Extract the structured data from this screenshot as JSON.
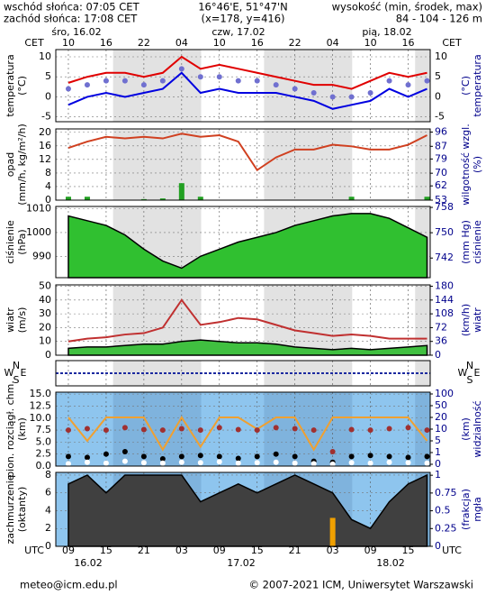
{
  "header": {
    "sunrise": "wschód słońca: 07:05 CET",
    "sunset": "zachód słońca: 17:08 CET",
    "coords": "16°46'E, 51°47'N",
    "grid_point": "(x=178, y=416)",
    "height_title": "wysokość (min, środek, max)",
    "height_values": "84 - 104 - 126 m"
  },
  "footer": {
    "email": "meteo@icm.edu.pl",
    "copyright": "© 2007-2021 ICM, Uniwersytet Warszawski"
  },
  "time": {
    "x": [
      9,
      12,
      15,
      18,
      21,
      24,
      27,
      30,
      33,
      36,
      39,
      42,
      45,
      48,
      51,
      54,
      57,
      60,
      63,
      66
    ],
    "xlim": [
      7,
      66.5
    ],
    "top_zone": "CET",
    "bottom_zone": "UTC",
    "cet_ticks": [
      {
        "value": 9,
        "label": "10"
      },
      {
        "value": 15,
        "label": "16"
      },
      {
        "value": 21,
        "label": "22"
      },
      {
        "value": 27,
        "label": "04"
      },
      {
        "value": 33,
        "label": "10"
      },
      {
        "value": 39,
        "label": "16"
      },
      {
        "value": 45,
        "label": "22"
      },
      {
        "value": 51,
        "label": "04"
      },
      {
        "value": 57,
        "label": "10"
      },
      {
        "value": 63,
        "label": "16"
      }
    ],
    "xticks": [
      {
        "value": 9,
        "label": "09"
      },
      {
        "value": 15,
        "label": "15"
      },
      {
        "value": 21,
        "label": "21"
      },
      {
        "value": 27,
        "label": "03"
      },
      {
        "value": 33,
        "label": "09"
      },
      {
        "value": 39,
        "label": "15"
      },
      {
        "value": 45,
        "label": "21"
      },
      {
        "value": 51,
        "label": "03"
      },
      {
        "value": 57,
        "label": "09"
      },
      {
        "value": 63,
        "label": "15"
      }
    ],
    "dates_top": [
      "śro, 16.02",
      "czw, 17.02",
      "pią, 18.02"
    ],
    "dates_bottom": [
      "16.02",
      "17.02",
      "18.02"
    ]
  },
  "chart_data": [
    {
      "type": "line",
      "ylabel": [
        "temperatura",
        "(°C)"
      ],
      "y2label": [
        "(°C)",
        "temperatura"
      ],
      "ylim": [
        -6.2,
        11.8
      ],
      "yticks": [
        -5,
        0,
        5,
        10
      ],
      "mirror": true,
      "series": [
        {
          "kind": "line",
          "color": "#e00000",
          "values": [
            3.5,
            5,
            6,
            6,
            5,
            6,
            10,
            7,
            8,
            7,
            6,
            5,
            4,
            3,
            3,
            2,
            4,
            6,
            5,
            6
          ]
        },
        {
          "kind": "dots",
          "color": "#7070d0",
          "values": [
            2,
            3,
            4,
            4,
            3,
            4,
            7,
            5,
            5,
            4,
            4,
            3,
            2,
            1,
            0,
            0,
            1,
            4,
            3,
            4
          ]
        },
        {
          "kind": "line",
          "color": "#0000e0",
          "values": [
            -2,
            0,
            1,
            0,
            1,
            2,
            6,
            1,
            2,
            1,
            1,
            1,
            0,
            -1,
            -3,
            -2,
            -1,
            2,
            0,
            2
          ]
        }
      ]
    },
    {
      "type": "line",
      "ylabel": [
        "opad",
        "(mm/h, kg/m²/h)"
      ],
      "y2label": [
        "wilgotność wzgl.",
        "(%)"
      ],
      "ylim": [
        0,
        21
      ],
      "yticks": [
        0,
        4,
        8,
        12,
        16,
        20
      ],
      "y2lim": [
        53,
        98
      ],
      "y2ticks": [
        53,
        62,
        70,
        79,
        87,
        96
      ],
      "series": [
        {
          "kind": "bars",
          "color": "#22a022",
          "values": [
            1,
            1,
            0,
            0,
            0.3,
            0.5,
            5,
            1,
            0,
            0,
            0,
            0,
            0,
            0,
            0,
            1,
            0,
            0,
            0,
            1
          ]
        },
        {
          "kind": "line",
          "color": "#d04020",
          "axis": "y2",
          "values": [
            86,
            90,
            93,
            92,
            93,
            92,
            95,
            93,
            94,
            90,
            72,
            80,
            85,
            85,
            88,
            87,
            85,
            85,
            88,
            94
          ]
        }
      ]
    },
    {
      "type": "line",
      "ylabel": [
        "ciśnienie",
        "(hPa)"
      ],
      "y2label": [
        "(mm Hg)",
        "ciśnienie"
      ],
      "ylim": [
        981,
        1011
      ],
      "yticks": [
        990,
        1000,
        1010
      ],
      "y2lim": [
        735.8,
        758.3
      ],
      "y2ticks": [
        742,
        750,
        758
      ],
      "series": [
        {
          "kind": "area",
          "color": "#30c030",
          "values": [
            1007,
            1005,
            1003,
            999,
            993,
            988,
            985,
            990,
            993,
            996,
            998,
            1000,
            1003,
            1005,
            1007,
            1008,
            1008,
            1006,
            1002,
            998
          ]
        }
      ]
    },
    {
      "type": "line",
      "ylabel": [
        "wiatr",
        "(m/s)"
      ],
      "y2label": [
        "(km/h)",
        "wiatr"
      ],
      "ylim": [
        0,
        51
      ],
      "yticks": [
        0,
        10,
        20,
        30,
        40,
        50
      ],
      "y2lim": [
        0,
        183.6
      ],
      "y2ticks": [
        0,
        36,
        72,
        108,
        144,
        180
      ],
      "series": [
        {
          "kind": "area",
          "color": "#40c040",
          "values": [
            5,
            6,
            6,
            7,
            8,
            8,
            10,
            11,
            10,
            9,
            9,
            8,
            6,
            5,
            4,
            5,
            4,
            5,
            6,
            7
          ]
        },
        {
          "kind": "line",
          "color": "#c03030",
          "values": [
            10,
            12,
            13,
            15,
            16,
            20,
            40,
            22,
            24,
            27,
            26,
            22,
            18,
            16,
            14,
            15,
            14,
            12,
            12,
            12
          ]
        }
      ]
    },
    {
      "type": "direction",
      "compass": [
        "N",
        "W",
        "E",
        "S"
      ]
    },
    {
      "type": "line",
      "ylabel": [
        "pion. rozciągł. chm.",
        "(km)"
      ],
      "y2label": [
        "(km)",
        "widzialność"
      ],
      "ylim": [
        0,
        15.4
      ],
      "yticks": [
        {
          "value": 0,
          "label": "0.0"
        },
        {
          "value": 2.5,
          "label": "2.5"
        },
        {
          "value": 5,
          "label": "5.0"
        },
        {
          "value": 7.5,
          "label": "7.5"
        },
        {
          "value": 10,
          "label": "10.0"
        },
        {
          "value": 12.5,
          "label": "12.5"
        },
        {
          "value": 15,
          "label": "15.0"
        }
      ],
      "y2scale": "ticks",
      "y2ticks": [
        0,
        1,
        5,
        10,
        20,
        50,
        100
      ],
      "series": [
        {
          "kind": "line",
          "color": "#f0a030",
          "axis": "y2",
          "values": [
            20,
            5,
            20,
            20,
            20,
            2,
            20,
            3,
            20,
            20,
            10,
            20,
            20,
            2,
            20,
            20,
            20,
            20,
            20,
            5
          ]
        },
        {
          "kind": "dots",
          "color": "#a03030",
          "values": [
            7.5,
            7.8,
            7.5,
            8,
            7.6,
            7.5,
            7.8,
            7.5,
            8,
            7.6,
            7.5,
            8,
            7.8,
            7.5,
            3,
            7.6,
            7.5,
            7.8,
            8,
            7.5
          ]
        },
        {
          "kind": "dots",
          "color": "#000000",
          "values": [
            2,
            1.8,
            2.5,
            3,
            2,
            1.5,
            2,
            2.2,
            2,
            1.6,
            2,
            2.5,
            2,
            1,
            0.8,
            2,
            2.2,
            2,
            1.8,
            2
          ]
        },
        {
          "kind": "dots",
          "color": "#ffffff",
          "values": [
            0.5,
            0.8,
            0.6,
            1,
            0.7,
            0.6,
            0.8,
            0.7,
            0.9,
            0.6,
            0.7,
            0.8,
            0.6,
            0.5,
            0.4,
            0.7,
            0.6,
            0.8,
            0.7,
            0.6
          ]
        }
      ]
    },
    {
      "type": "line",
      "ylabel": [
        "zachmurzenie",
        "(oktanty)"
      ],
      "y2label": [
        "(frakcja)",
        "mgła"
      ],
      "ylim": [
        0,
        8.3
      ],
      "yticks": [
        0,
        2,
        4,
        6,
        8
      ],
      "y2lim": [
        0,
        1.04
      ],
      "y2ticks": [
        0,
        0.25,
        0.5,
        0.75,
        1
      ],
      "series": [
        {
          "kind": "area",
          "color": "#404040",
          "values": [
            7,
            8,
            6,
            8,
            8,
            8,
            8,
            5,
            6,
            7,
            6,
            7,
            8,
            7,
            6,
            3,
            2,
            5,
            7,
            8
          ]
        },
        {
          "kind": "bars",
          "color": "#f0a000",
          "axis": "y2",
          "values": [
            0,
            0,
            0,
            0,
            0,
            0,
            0,
            0,
            0,
            0,
            0,
            0,
            0,
            0,
            0.4,
            0,
            0,
            0,
            0,
            0
          ]
        }
      ]
    }
  ]
}
